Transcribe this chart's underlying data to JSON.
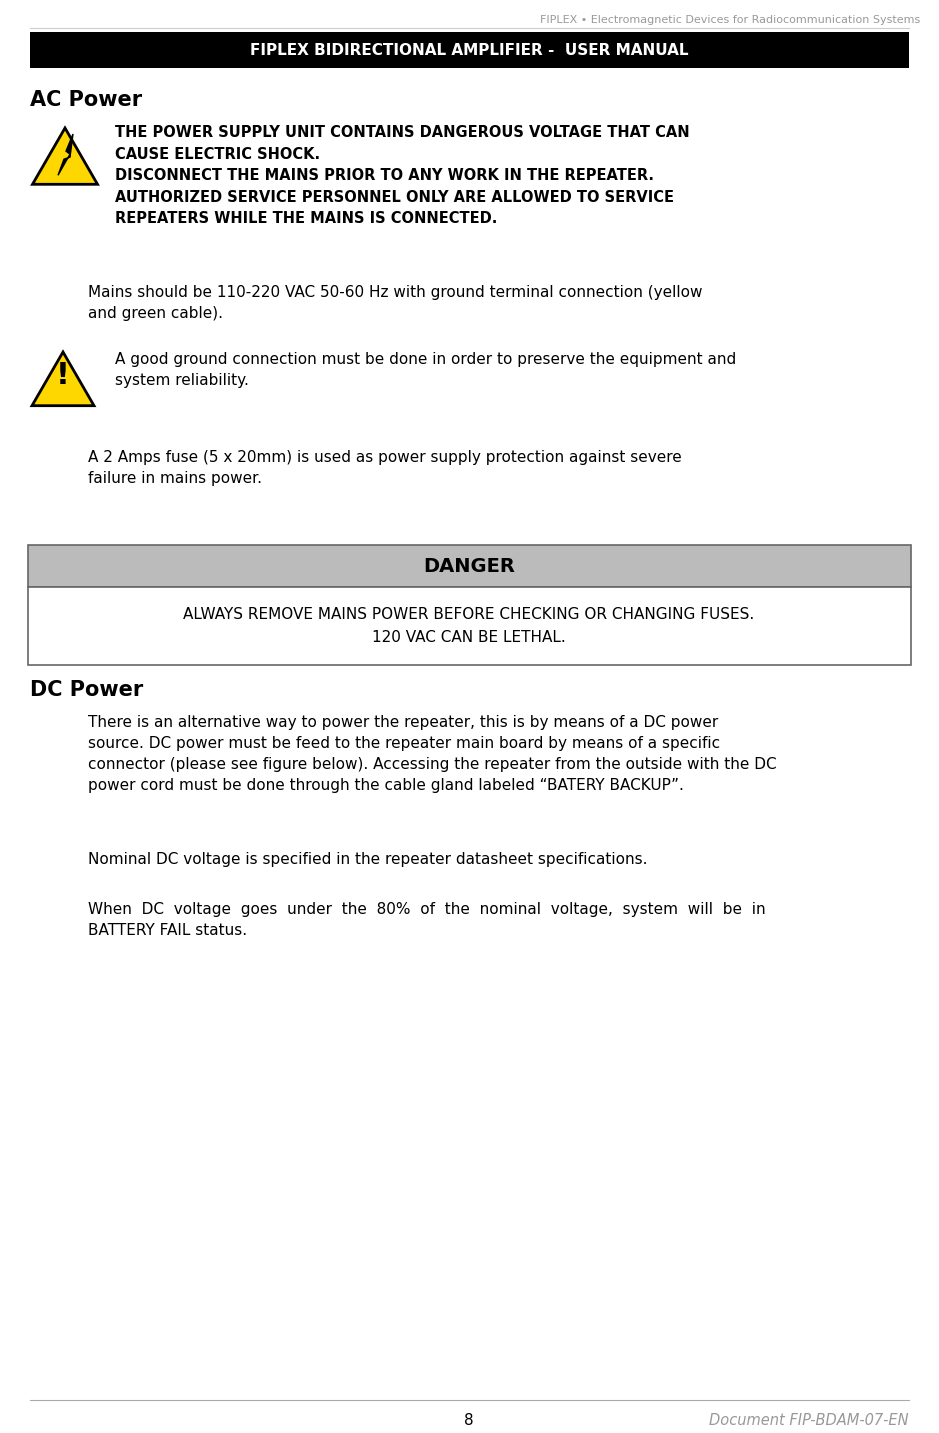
{
  "header_text": "FIPLEX • Electromagnetic Devices for Radiocommunication Systems",
  "title_bar_text": "FIPLEX BIDIRECTIONAL AMPLIFIER -  USER MANUAL",
  "title_bar_bg": "#000000",
  "title_bar_text_color": "#ffffff",
  "ac_power_heading": "AC Power",
  "warning_text_1": "THE POWER SUPPLY UNIT CONTAINS DANGEROUS VOLTAGE THAT CAN\nCAUSE ELECTRIC SHOCK.\nDISCONNECT THE MAINS PRIOR TO ANY WORK IN THE REPEATER.\nAUTHORIZED SERVICE PERSONNEL ONLY ARE ALLOWED TO SERVICE\nREPEATERS WHILE THE MAINS IS CONNECTED.",
  "mains_text": "Mains should be 110-220 VAC 50-60 Hz with ground terminal connection (yellow\nand green cable).",
  "warning_text_2": "A good ground connection must be done in order to preserve the equipment and\nsystem reliability.",
  "fuse_text": "A 2 Amps fuse (5 x 20mm) is used as power supply protection against severe\nfailure in mains power.",
  "danger_bar_text": "DANGER",
  "danger_bar_bg": "#bbbbbb",
  "danger_content_text": "ALWAYS REMOVE MAINS POWER BEFORE CHECKING OR CHANGING FUSES.\n120 VAC CAN BE LETHAL.",
  "danger_content_bg": "#ffffff",
  "dc_power_heading": "DC Power",
  "dc_para1": "There is an alternative way to power the repeater, this is by means of a DC power\nsource. DC power must be feed to the repeater main board by means of a specific\nconnector (please see figure below). Accessing the repeater from the outside with the DC\npower cord must be done through the cable gland labeled “BATERY BACKUP”.",
  "dc_para2": "Nominal DC voltage is specified in the repeater datasheet specifications.",
  "dc_para3": "When  DC  voltage  goes  under  the  80%  of  the  nominal  voltage,  system  will  be  in\nBATTERY FAIL status.",
  "footer_page": "8",
  "footer_doc": "Document FIP-BDAM-07-EN",
  "bg_color": "#ffffff",
  "text_color": "#000000",
  "gray_text_color": "#999999"
}
